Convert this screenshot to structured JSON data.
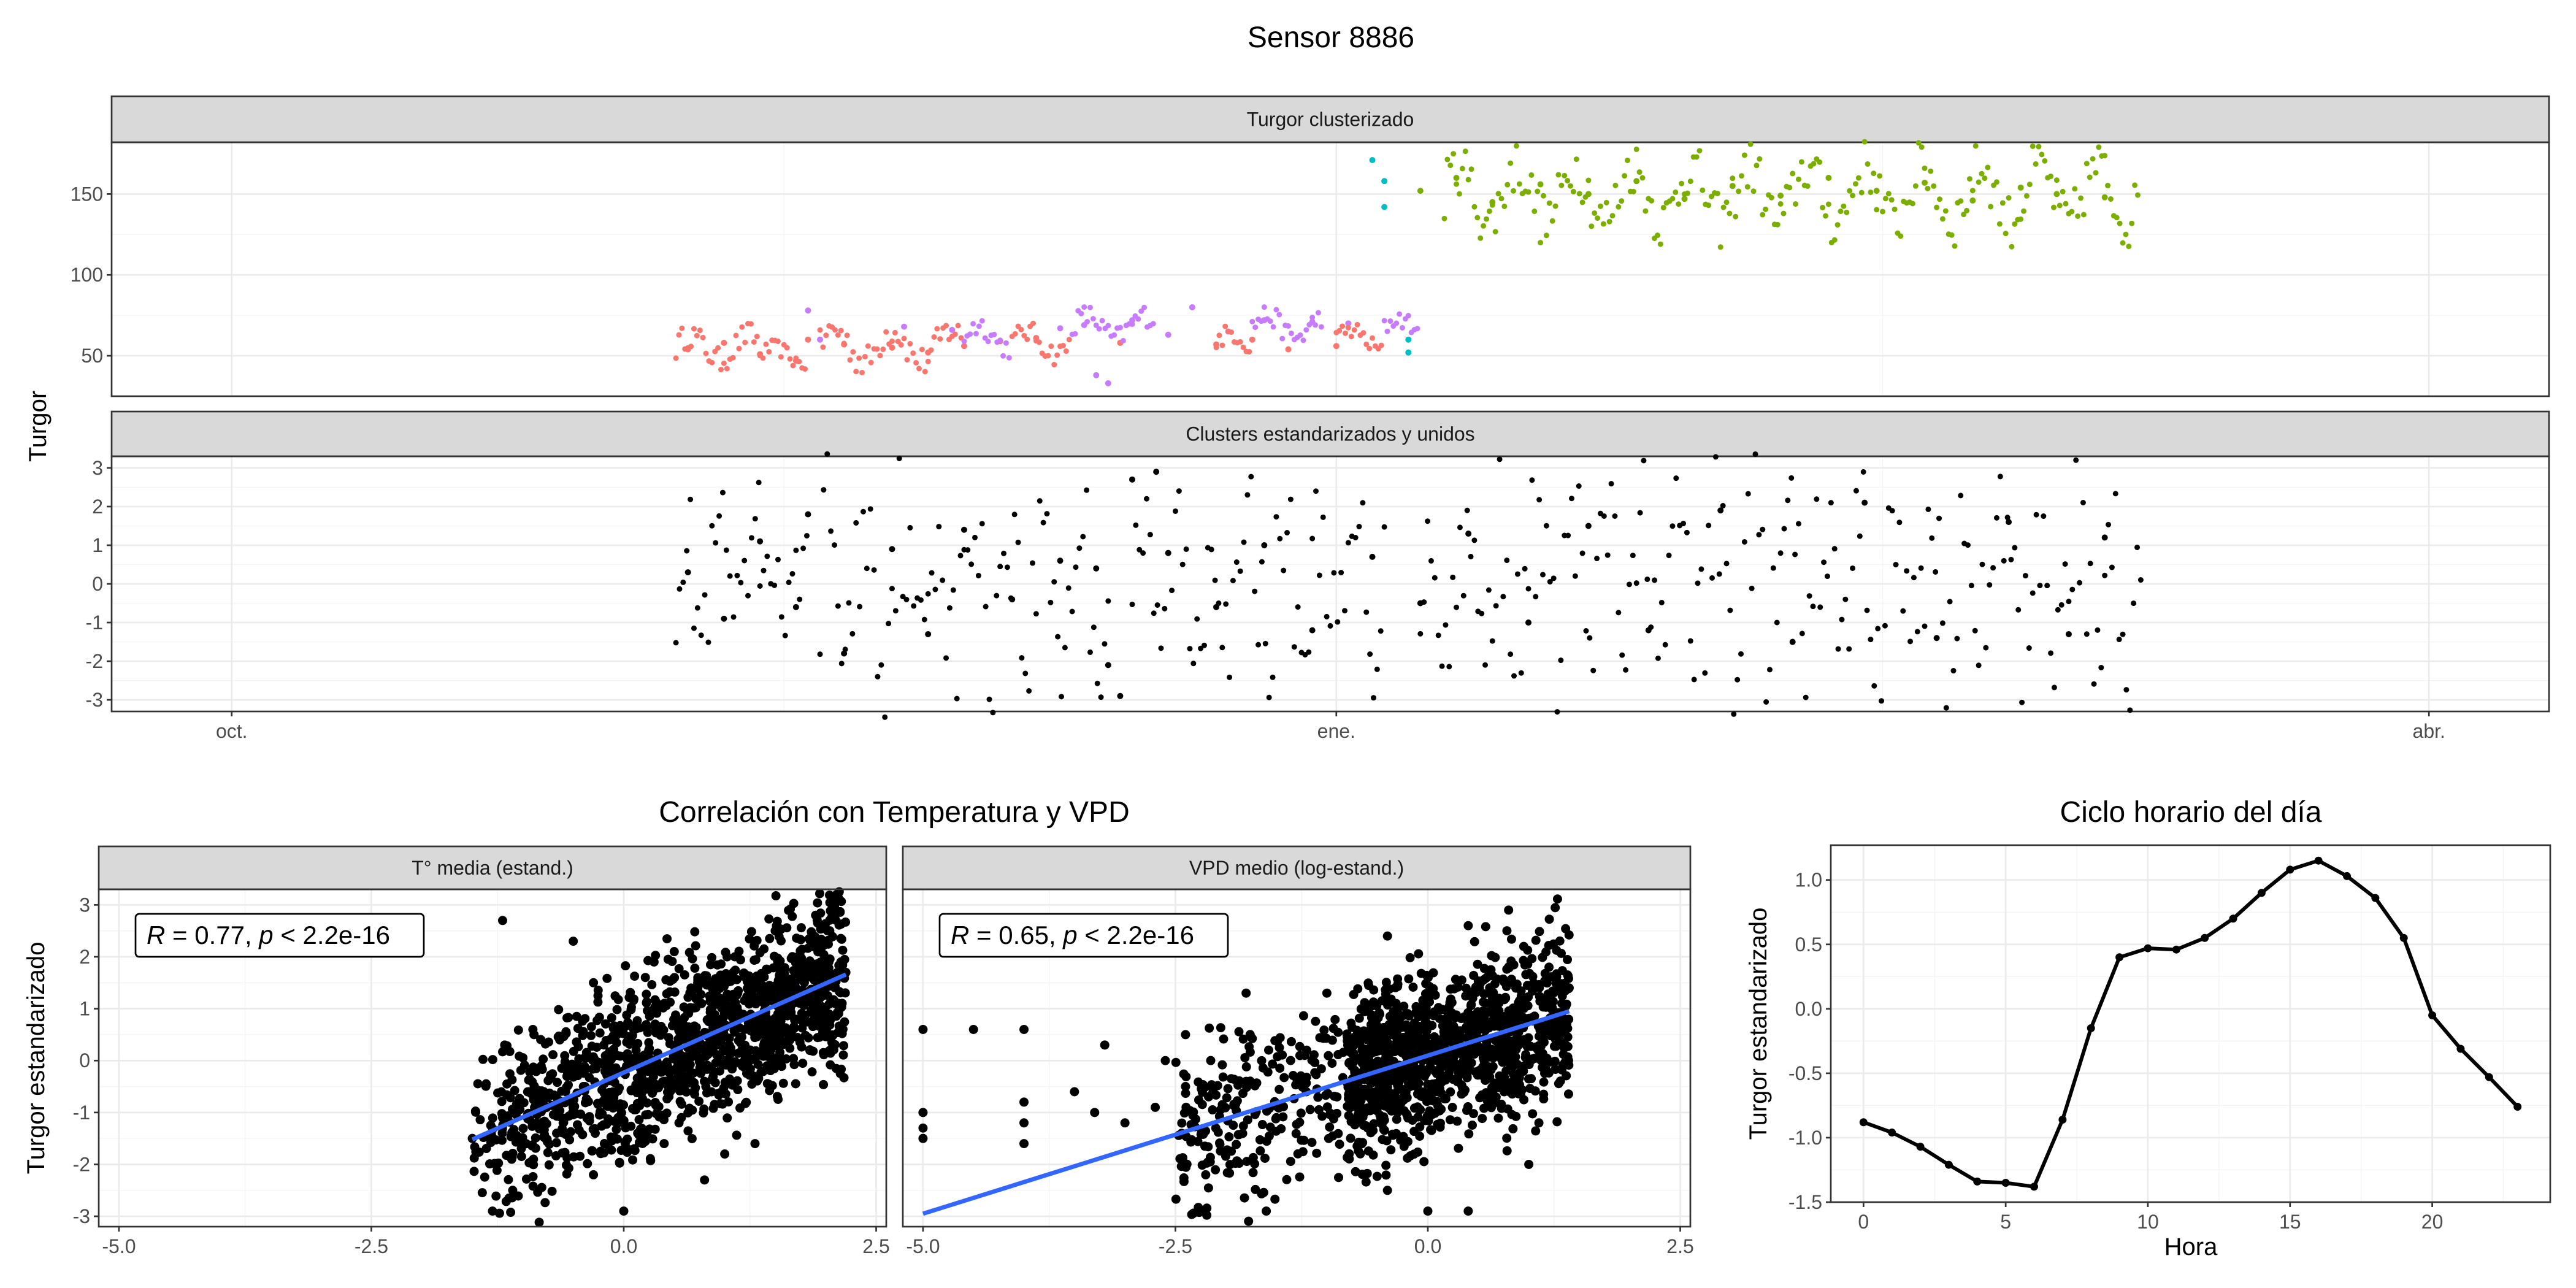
{
  "title": "Sensor 8886",
  "chart_data": [
    {
      "type": "scatter",
      "title": "Turgor clusterizado",
      "xlabel": "",
      "ylabel": "Turgor",
      "x_ticks": [
        "oct.",
        "ene.",
        "abr."
      ],
      "x_tick_dates": [
        "2023-10-01",
        "2024-01-01",
        "2024-04-01"
      ],
      "xlim": [
        "2023-09-21",
        "2024-04-11"
      ],
      "y_ticks": [
        50,
        100,
        150
      ],
      "ylim": [
        25,
        182
      ],
      "grid": true,
      "series": [
        {
          "color": "#F8766D",
          "values": [
            [
              "2023-11-08",
              54
            ],
            [
              "2023-11-11",
              58
            ],
            [
              "2023-11-14",
              51
            ],
            [
              "2023-11-17",
              47
            ],
            [
              "2023-11-18",
              60
            ],
            [
              "2023-11-21",
              57
            ],
            [
              "2023-11-25",
              55
            ],
            [
              "2023-11-28",
              52
            ],
            [
              "2023-12-01",
              56
            ],
            [
              "2023-12-04",
              59
            ],
            [
              "2023-12-07",
              61
            ],
            [
              "2023-12-14",
              58
            ],
            [
              "2023-12-22",
              57
            ],
            [
              "2023-12-25",
              60
            ],
            [
              "2023-12-28",
              54
            ],
            [
              "2024-01-01",
              56
            ]
          ]
        },
        {
          "color": "#C77CFF",
          "values": [
            [
              "2023-11-18",
              78
            ],
            [
              "2023-11-19",
              60
            ],
            [
              "2023-11-26",
              68
            ],
            [
              "2023-11-30",
              66
            ],
            [
              "2023-12-09",
              67
            ],
            [
              "2023-12-11",
              69
            ],
            [
              "2023-12-15",
              72
            ],
            [
              "2023-12-18",
              63
            ],
            [
              "2023-12-20",
              80
            ],
            [
              "2023-12-23",
              65
            ],
            [
              "2023-12-26",
              72
            ],
            [
              "2023-12-30",
              71
            ],
            [
              "2024-01-02",
              70
            ],
            [
              "2023-12-12",
              38
            ],
            [
              "2023-12-13",
              33
            ]
          ]
        },
        {
          "color": "#00BFC4",
          "values": [
            [
              "2024-01-04",
              171
            ],
            [
              "2024-01-05",
              158
            ],
            [
              "2024-01-05",
              142
            ],
            [
              "2024-01-07",
              60
            ],
            [
              "2024-01-07",
              52
            ]
          ]
        },
        {
          "color": "#7CAE00",
          "values": [
            [
              "2024-01-08",
              152
            ],
            [
              "2024-01-11",
              160
            ],
            [
              "2024-01-14",
              145
            ],
            [
              "2024-01-18",
              156
            ],
            [
              "2024-01-22",
              150
            ],
            [
              "2024-01-26",
              158
            ],
            [
              "2024-01-30",
              147
            ],
            [
              "2024-02-03",
              155
            ],
            [
              "2024-02-07",
              149
            ],
            [
              "2024-02-11",
              160
            ],
            [
              "2024-02-15",
              152
            ],
            [
              "2024-02-19",
              157
            ],
            [
              "2024-02-23",
              146
            ],
            [
              "2024-02-27",
              154
            ],
            [
              "2024-03-01",
              150
            ],
            [
              "2024-03-05",
              148
            ]
          ]
        }
      ]
    },
    {
      "type": "scatter",
      "title": "Clusters estandarizados y unidos",
      "xlabel": "",
      "ylabel": "Turgor",
      "x_ticks": [
        "oct.",
        "ene.",
        "abr."
      ],
      "x_tick_dates": [
        "2023-10-01",
        "2024-01-01",
        "2024-04-01"
      ],
      "xlim": [
        "2023-09-21",
        "2024-04-11"
      ],
      "y_ticks": [
        -3,
        -2,
        -1,
        0,
        1,
        2,
        3
      ],
      "ylim": [
        -3.3,
        3.3
      ],
      "grid": true,
      "series": [
        {
          "color": "#000000",
          "values": [
            [
              "2023-11-08",
              0.3
            ],
            [
              "2023-11-11",
              -0.9
            ],
            [
              "2023-11-14",
              1.1
            ],
            [
              "2023-11-17",
              -0.6
            ],
            [
              "2023-11-18",
              1.8
            ],
            [
              "2023-11-21",
              -1.8
            ],
            [
              "2023-11-25",
              0.9
            ],
            [
              "2023-11-28",
              -1.3
            ],
            [
              "2023-12-01",
              1.4
            ],
            [
              "2023-12-05",
              -0.4
            ],
            [
              "2023-12-09",
              0.6
            ],
            [
              "2023-12-12",
              0.4
            ],
            [
              "2023-12-13",
              -2.1
            ],
            [
              "2023-12-14",
              -2.9
            ],
            [
              "2023-12-15",
              2.7
            ],
            [
              "2023-12-17",
              2.9
            ],
            [
              "2023-12-18",
              0.8
            ],
            [
              "2023-12-22",
              -0.6
            ],
            [
              "2023-12-26",
              1.0
            ],
            [
              "2023-12-30",
              -1.2
            ],
            [
              "2024-01-04",
              0.7
            ],
            [
              "2024-01-08",
              -0.5
            ],
            [
              "2024-01-12",
              1.3
            ],
            [
              "2024-01-17",
              -1.0
            ],
            [
              "2024-01-22",
              1.5
            ],
            [
              "2024-01-27",
              -1.2
            ],
            [
              "2024-02-02",
              1.9
            ],
            [
              "2024-02-08",
              -1.5
            ],
            [
              "2024-02-14",
              2.1
            ],
            [
              "2024-02-20",
              -1.4
            ],
            [
              "2024-02-26",
              1.6
            ],
            [
              "2024-03-02",
              -1.3
            ],
            [
              "2024-03-05",
              1.2
            ]
          ]
        }
      ]
    },
    {
      "type": "scatter",
      "title": "T° media (estand.)",
      "ylabel": "Turgor estandarizado",
      "xlim": [
        -5.2,
        2.6
      ],
      "ylim": [
        -3.2,
        3.3
      ],
      "x_ticks": [
        -5,
        -2.5,
        0,
        2.5
      ],
      "x_tick_labels": [
        "-5.0",
        "-2.5",
        "0.0",
        "2.5"
      ],
      "y_ticks": [
        -3,
        -2,
        -1,
        0,
        1,
        2,
        3
      ],
      "annotation": "R = 0.77, p < 2.2e-16",
      "annotation_parts": {
        "r_label": "R",
        "r_text": " = 0.77, ",
        "p_label": "p",
        "p_text": " < 2.2e-16"
      },
      "fit_line": {
        "color": "#3366FF",
        "x": [
          -1.5,
          2.2
        ],
        "y": [
          -1.52,
          1.66
        ]
      },
      "points": [
        [
          -1.5,
          -1.5
        ],
        [
          -1.2,
          -1.1
        ],
        [
          -1.0,
          -1.6
        ],
        [
          -0.8,
          -0.9
        ],
        [
          -0.6,
          -1.2
        ],
        [
          -0.4,
          -0.5
        ],
        [
          -0.2,
          -0.8
        ],
        [
          0.0,
          -0.2
        ],
        [
          0.2,
          0.1
        ],
        [
          0.4,
          -0.4
        ],
        [
          0.6,
          0.5
        ],
        [
          0.8,
          0.2
        ],
        [
          1.0,
          0.9
        ],
        [
          1.2,
          0.6
        ],
        [
          1.4,
          1.3
        ],
        [
          1.6,
          1.0
        ],
        [
          1.8,
          1.6
        ],
        [
          2.0,
          1.4
        ],
        [
          2.2,
          1.7
        ],
        [
          -0.3,
          1.5
        ],
        [
          -0.5,
          2.3
        ],
        [
          0.3,
          1.9
        ],
        [
          0.5,
          2.1
        ],
        [
          1.1,
          2.0
        ],
        [
          1.9,
          2.8
        ],
        [
          1.5,
          2.5
        ],
        [
          -0.9,
          0.6
        ],
        [
          -1.2,
          2.7
        ],
        [
          0.8,
          -2.3
        ],
        [
          0.0,
          -2.9
        ],
        [
          -1.3,
          -2.9
        ],
        [
          -1.1,
          -2.5
        ],
        [
          -0.3,
          -2.2
        ],
        [
          0.4,
          -1.6
        ],
        [
          1.3,
          -1.6
        ],
        [
          1.0,
          -1.8
        ]
      ]
    },
    {
      "type": "scatter",
      "title": "VPD medio (log-estand.)",
      "ylabel": "Turgor estandarizado",
      "xlim": [
        -5.2,
        2.6
      ],
      "ylim": [
        -3.2,
        3.3
      ],
      "x_ticks": [
        -5,
        -2.5,
        0,
        2.5
      ],
      "x_tick_labels": [
        "-5.0",
        "-2.5",
        "0.0",
        "2.5"
      ],
      "y_ticks": [
        -3,
        -2,
        -1,
        0,
        1,
        2,
        3
      ],
      "annotation": "R = 0.65, p < 2.2e-16",
      "annotation_parts": {
        "r_label": "R",
        "r_text": " = 0.65, ",
        "p_label": "p",
        "p_text": " < 2.2e-16"
      },
      "fit_line": {
        "color": "#3366FF",
        "x": [
          -5.0,
          1.4
        ],
        "y": [
          -2.95,
          0.95
        ]
      },
      "points": [
        [
          -5.0,
          0.6
        ],
        [
          -4.5,
          0.6
        ],
        [
          -4.0,
          0.6
        ],
        [
          -5.0,
          -1.0
        ],
        [
          -5.0,
          -1.3
        ],
        [
          -5.0,
          -1.5
        ],
        [
          -4.0,
          -0.8
        ],
        [
          -4.0,
          -1.2
        ],
        [
          -4.0,
          -1.6
        ],
        [
          -3.5,
          -0.6
        ],
        [
          -3.3,
          -1.0
        ],
        [
          -3.0,
          -1.2
        ],
        [
          -2.7,
          -0.9
        ],
        [
          -2.4,
          -0.5
        ],
        [
          -2.1,
          -1.3
        ],
        [
          -1.8,
          -0.4
        ],
        [
          -1.5,
          -1.1
        ],
        [
          -1.2,
          0.2
        ],
        [
          -0.9,
          -0.7
        ],
        [
          -0.6,
          0.4
        ],
        [
          -0.3,
          -1.0
        ],
        [
          0.0,
          0.7
        ],
        [
          0.3,
          -0.4
        ],
        [
          0.6,
          1.3
        ],
        [
          0.9,
          0.3
        ],
        [
          1.2,
          1.8
        ],
        [
          1.4,
          1.4
        ],
        [
          -3.2,
          0.3
        ],
        [
          -2.4,
          0.5
        ],
        [
          -1.8,
          1.3
        ],
        [
          -1.0,
          1.3
        ],
        [
          -0.4,
          2.4
        ],
        [
          0.4,
          2.6
        ],
        [
          0.8,
          2.9
        ],
        [
          -1.6,
          -2.9
        ],
        [
          -0.4,
          -2.5
        ],
        [
          0.0,
          -2.9
        ],
        [
          0.4,
          -2.9
        ],
        [
          1.0,
          -2.0
        ],
        [
          1.1,
          -1.2
        ],
        [
          -2.2,
          -2.2
        ],
        [
          -2.6,
          0.0
        ]
      ]
    },
    {
      "type": "line",
      "title": "Ciclo horario del día",
      "xlabel": "Hora",
      "ylabel": "Turgor estandarizado",
      "x": [
        0,
        1,
        2,
        3,
        4,
        5,
        6,
        7,
        8,
        9,
        10,
        11,
        12,
        13,
        14,
        15,
        16,
        17,
        18,
        19,
        20,
        21,
        22,
        23
      ],
      "values": [
        -0.88,
        -0.96,
        -1.07,
        -1.21,
        -1.34,
        -1.35,
        -1.38,
        -0.86,
        -0.15,
        0.4,
        0.47,
        0.46,
        0.55,
        0.7,
        0.9,
        1.08,
        1.15,
        1.03,
        0.86,
        0.55,
        -0.05,
        -0.31,
        -0.53,
        -0.76
      ],
      "xlim": [
        -1.15,
        24.15
      ],
      "ylim": [
        -1.5,
        1.27
      ],
      "x_ticks": [
        0,
        5,
        10,
        15,
        20
      ],
      "y_ticks": [
        -1.5,
        -1.0,
        -0.5,
        0.0,
        0.5,
        1.0
      ],
      "y_tick_labels": [
        "-1.5",
        "-1.0",
        "-0.5",
        "0.0",
        "0.5",
        "1.0"
      ],
      "grid": true
    }
  ]
}
